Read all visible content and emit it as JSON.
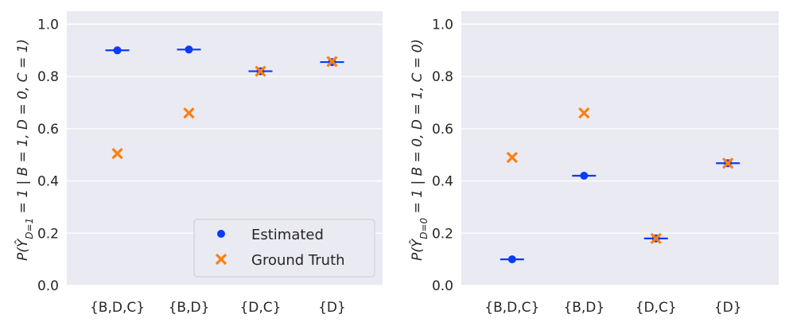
{
  "colors": {
    "estimated": "#0b3bf5",
    "ground_truth": "#ff7f0e",
    "panel_bg": "#eaeaf2",
    "grid": "#ffffff"
  },
  "chart_data": [
    {
      "type": "scatter",
      "categories": [
        "{B,D,C}",
        "{B,D}",
        "{D,C}",
        "{D}"
      ],
      "ylabel": "P(Ŷ_{D=1} = 1 | B = 1, D = 0, C = 1)",
      "ylim": [
        0,
        1.05
      ],
      "yticks": [
        "0.0",
        "0.2",
        "0.4",
        "0.6",
        "0.8",
        "1.0"
      ],
      "series": [
        {
          "name": "Estimated",
          "marker": "dot-with-hbar",
          "values": [
            0.9,
            0.903,
            0.82,
            0.855
          ]
        },
        {
          "name": "Ground Truth",
          "marker": "x",
          "values": [
            0.505,
            0.66,
            0.82,
            0.857
          ]
        }
      ],
      "legend": {
        "position": "bottom-right",
        "entries": [
          "Estimated",
          "Ground Truth"
        ]
      }
    },
    {
      "type": "scatter",
      "categories": [
        "{B,D,C}",
        "{B,D}",
        "{D,C}",
        "{D}"
      ],
      "ylabel": "P(Ŷ_{D=0} = 1 | B = 0, D = 1, C = 0)",
      "ylim": [
        0,
        1.05
      ],
      "yticks": [
        "0.0",
        "0.2",
        "0.4",
        "0.6",
        "0.8",
        "1.0"
      ],
      "series": [
        {
          "name": "Estimated",
          "marker": "dot-with-hbar",
          "values": [
            0.1,
            0.42,
            0.18,
            0.468
          ]
        },
        {
          "name": "Ground Truth",
          "marker": "x",
          "values": [
            0.49,
            0.66,
            0.18,
            0.468
          ]
        }
      ]
    }
  ]
}
